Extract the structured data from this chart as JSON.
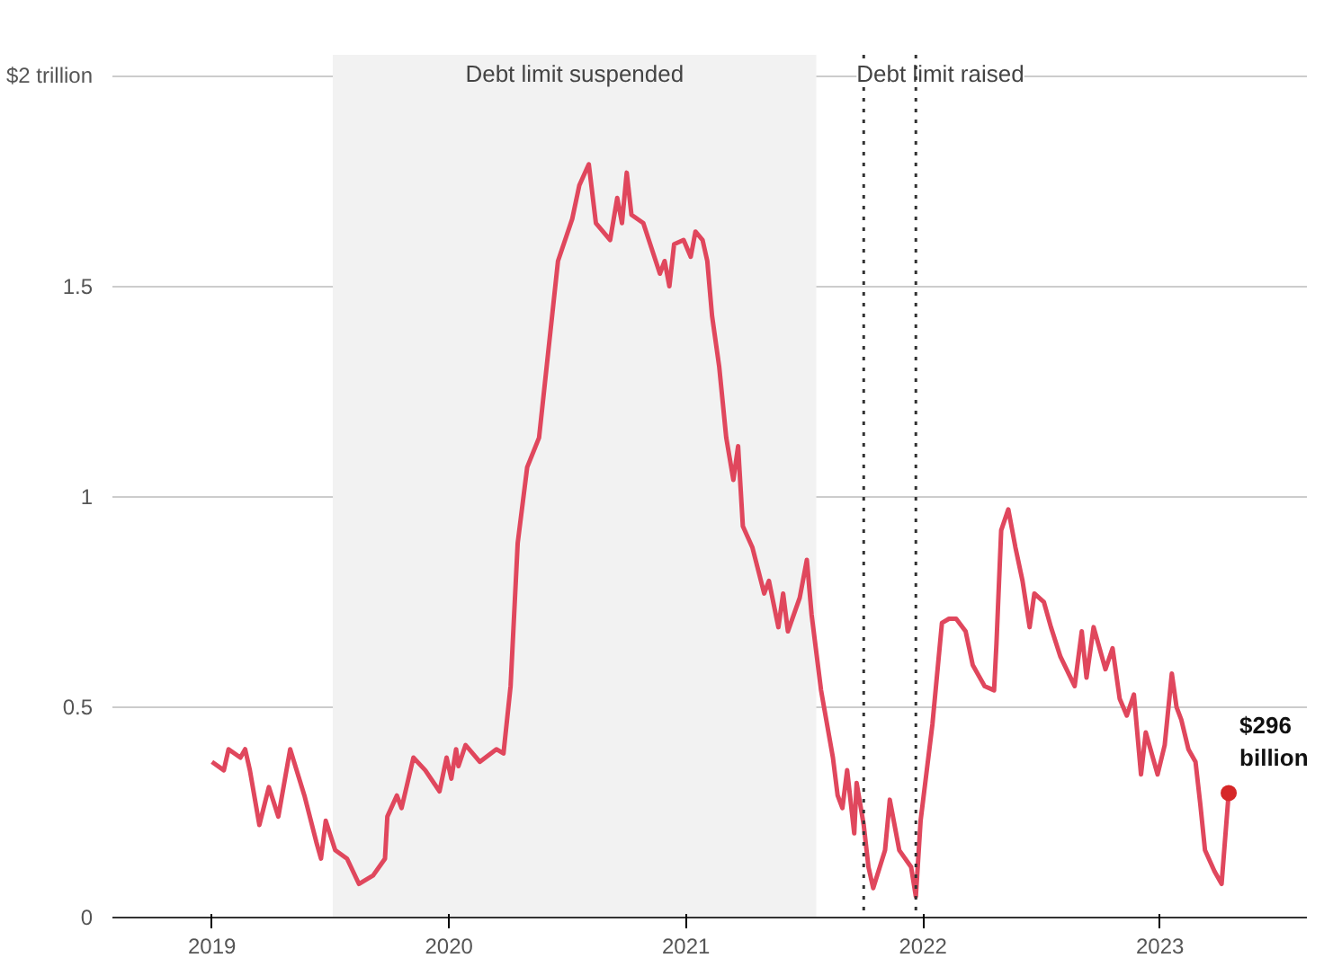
{
  "chart_data": {
    "type": "line",
    "xlim": [
      2018.58,
      2023.62
    ],
    "ylim": [
      0,
      2.05
    ],
    "xticks": [
      2019,
      2020,
      2021,
      2022,
      2023
    ],
    "yticks": [
      0,
      0.5,
      1,
      1.5,
      {
        "value": 2,
        "label": "$2 trillion"
      }
    ],
    "grid": "y",
    "marker": "none",
    "line_style": "solid",
    "series": [
      {
        "color": "#e0475d",
        "x": [
          2019.0,
          2019.05,
          2019.07,
          2019.12,
          2019.14,
          2019.16,
          2019.2,
          2019.24,
          2019.28,
          2019.33,
          2019.39,
          2019.44,
          2019.46,
          2019.48,
          2019.52,
          2019.57,
          2019.62,
          2019.68,
          2019.73,
          2019.74,
          2019.78,
          2019.8,
          2019.85,
          2019.9,
          2019.96,
          2019.99,
          2020.01,
          2020.03,
          2020.04,
          2020.07,
          2020.13,
          2020.2,
          2020.23,
          2020.26,
          2020.29,
          2020.33,
          2020.38,
          2020.42,
          2020.46,
          2020.52,
          2020.55,
          2020.59,
          2020.62,
          2020.68,
          2020.71,
          2020.73,
          2020.75,
          2020.77,
          2020.82,
          2020.89,
          2020.91,
          2020.93,
          2020.95,
          2020.99,
          2021.02,
          2021.04,
          2021.07,
          2021.09,
          2021.11,
          2021.14,
          2021.17,
          2021.2,
          2021.22,
          2021.24,
          2021.28,
          2021.33,
          2021.35,
          2021.39,
          2021.41,
          2021.43,
          2021.48,
          2021.51,
          2021.53,
          2021.57,
          2021.62,
          2021.64,
          2021.66,
          2021.68,
          2021.71,
          2021.72,
          2021.75,
          2021.77,
          2021.79,
          2021.84,
          2021.86,
          2021.9,
          2021.95,
          2021.97,
          2021.99,
          2022.04,
          2022.08,
          2022.11,
          2022.14,
          2022.18,
          2022.21,
          2022.26,
          2022.3,
          2022.31,
          2022.33,
          2022.36,
          2022.39,
          2022.42,
          2022.45,
          2022.47,
          2022.51,
          2022.54,
          2022.58,
          2022.64,
          2022.67,
          2022.69,
          2022.72,
          2022.77,
          2022.8,
          2022.83,
          2022.86,
          2022.89,
          2022.92,
          2022.94,
          2022.99,
          2023.02,
          2023.05,
          2023.07,
          2023.09,
          2023.12,
          2023.15,
          2023.17,
          2023.19,
          2023.23,
          2023.26,
          2023.29
        ],
        "values": [
          0.37,
          0.35,
          0.4,
          0.38,
          0.4,
          0.35,
          0.22,
          0.31,
          0.24,
          0.4,
          0.29,
          0.18,
          0.14,
          0.23,
          0.16,
          0.14,
          0.08,
          0.1,
          0.14,
          0.24,
          0.29,
          0.26,
          0.38,
          0.35,
          0.3,
          0.38,
          0.33,
          0.4,
          0.36,
          0.41,
          0.37,
          0.4,
          0.39,
          0.55,
          0.89,
          1.07,
          1.14,
          1.35,
          1.56,
          1.66,
          1.74,
          1.79,
          1.65,
          1.61,
          1.71,
          1.65,
          1.77,
          1.67,
          1.65,
          1.53,
          1.56,
          1.5,
          1.6,
          1.61,
          1.57,
          1.63,
          1.61,
          1.56,
          1.43,
          1.31,
          1.14,
          1.04,
          1.12,
          0.93,
          0.88,
          0.77,
          0.8,
          0.69,
          0.77,
          0.68,
          0.76,
          0.85,
          0.72,
          0.54,
          0.38,
          0.29,
          0.26,
          0.35,
          0.2,
          0.32,
          0.22,
          0.12,
          0.07,
          0.16,
          0.28,
          0.16,
          0.12,
          0.05,
          0.23,
          0.46,
          0.7,
          0.71,
          0.71,
          0.68,
          0.6,
          0.55,
          0.54,
          0.65,
          0.92,
          0.97,
          0.88,
          0.8,
          0.69,
          0.77,
          0.75,
          0.69,
          0.62,
          0.55,
          0.68,
          0.57,
          0.69,
          0.59,
          0.64,
          0.52,
          0.48,
          0.53,
          0.34,
          0.44,
          0.34,
          0.41,
          0.58,
          0.5,
          0.47,
          0.4,
          0.37,
          0.27,
          0.16,
          0.11,
          0.08,
          0.296
        ]
      }
    ],
    "bands": [
      {
        "axis": "x",
        "from": 2019.51,
        "to": 2021.55,
        "label": "Debt limit suspended",
        "color": "#f2f2f2"
      }
    ],
    "ref_lines": [
      {
        "axis": "x",
        "value": 2021.75,
        "label": "Debt limit raised",
        "color": "#333333",
        "line_style": "dotted"
      },
      {
        "axis": "x",
        "value": 2021.97,
        "label": null,
        "color": "#333333",
        "line_style": "dotted"
      }
    ],
    "annotations": [
      {
        "text": "$296 billion",
        "x": 2023.29,
        "y": 0.296
      }
    ]
  }
}
